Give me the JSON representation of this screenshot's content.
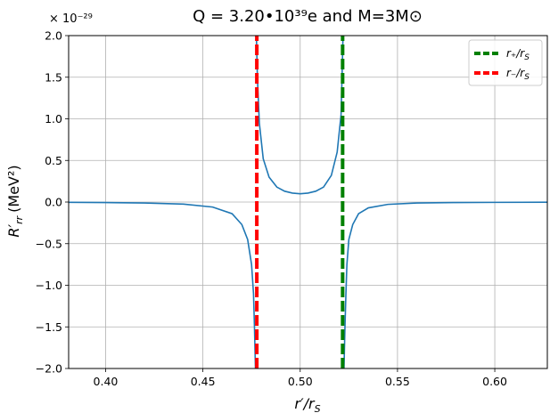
{
  "chart_data": {
    "type": "line",
    "title": "Q = 3.20•10³⁹e    and    M=3M⊙",
    "xlabel": "r′/r",
    "xlabel_sub": "S",
    "ylabel": "R′",
    "ylabel_sub": "rr",
    "ylabel_unit": "(MeV²)",
    "y_offset_label": "× 10⁻²⁹",
    "xlim": [
      0.381,
      0.627
    ],
    "ylim": [
      -2.0,
      2.0
    ],
    "x_ticks": [
      0.4,
      0.45,
      0.5,
      0.55,
      0.6
    ],
    "x_tick_labels": [
      "0.40",
      "0.45",
      "0.50",
      "0.55",
      "0.60"
    ],
    "y_ticks": [
      -2.0,
      -1.5,
      -1.0,
      -0.5,
      0.0,
      0.5,
      1.0,
      1.5,
      2.0
    ],
    "y_tick_labels": [
      "−2.0",
      "−1.5",
      "−1.0",
      "−0.5",
      "0.0",
      "0.5",
      "1.0",
      "1.5",
      "2.0"
    ],
    "grid": true,
    "legend_position": "top-right",
    "series": [
      {
        "color": "#1f77b4",
        "style": "solid",
        "x": [
          0.381,
          0.4,
          0.42,
          0.44,
          0.455,
          0.465,
          0.47,
          0.473,
          0.475,
          0.476,
          0.4765,
          0.477,
          0.4775,
          0.478,
          0.479,
          0.481,
          0.484,
          0.488,
          0.492,
          0.496,
          0.5,
          0.504,
          0.508,
          0.512,
          0.516,
          0.519,
          0.521,
          0.5215,
          0.522,
          0.5225,
          0.523,
          0.5235,
          0.524,
          0.525,
          0.527,
          0.53,
          0.535,
          0.545,
          0.56,
          0.58,
          0.6,
          0.627
        ],
        "y": [
          -0.003,
          -0.006,
          -0.011,
          -0.025,
          -0.06,
          -0.14,
          -0.27,
          -0.45,
          -0.75,
          -1.1,
          -1.5,
          -2.0,
          2.0,
          1.5,
          0.95,
          0.52,
          0.3,
          0.18,
          0.13,
          0.108,
          0.1,
          0.108,
          0.13,
          0.18,
          0.32,
          0.6,
          1.05,
          1.5,
          2.0,
          -2.0,
          -1.5,
          -1.1,
          -0.75,
          -0.45,
          -0.27,
          -0.14,
          -0.07,
          -0.028,
          -0.011,
          -0.006,
          -0.004,
          -0.002
        ]
      },
      {
        "name": "r₊/r",
        "name_sub": "S",
        "color": "#008000",
        "style": "dashed",
        "x": [
          0.5218,
          0.5218
        ],
        "y": [
          -2.0,
          2.0
        ]
      },
      {
        "name": "r₋/r",
        "name_sub": "S",
        "color": "#ff0000",
        "style": "dashed",
        "x": [
          0.4777,
          0.4777
        ],
        "y": [
          -2.0,
          2.0
        ]
      }
    ]
  }
}
